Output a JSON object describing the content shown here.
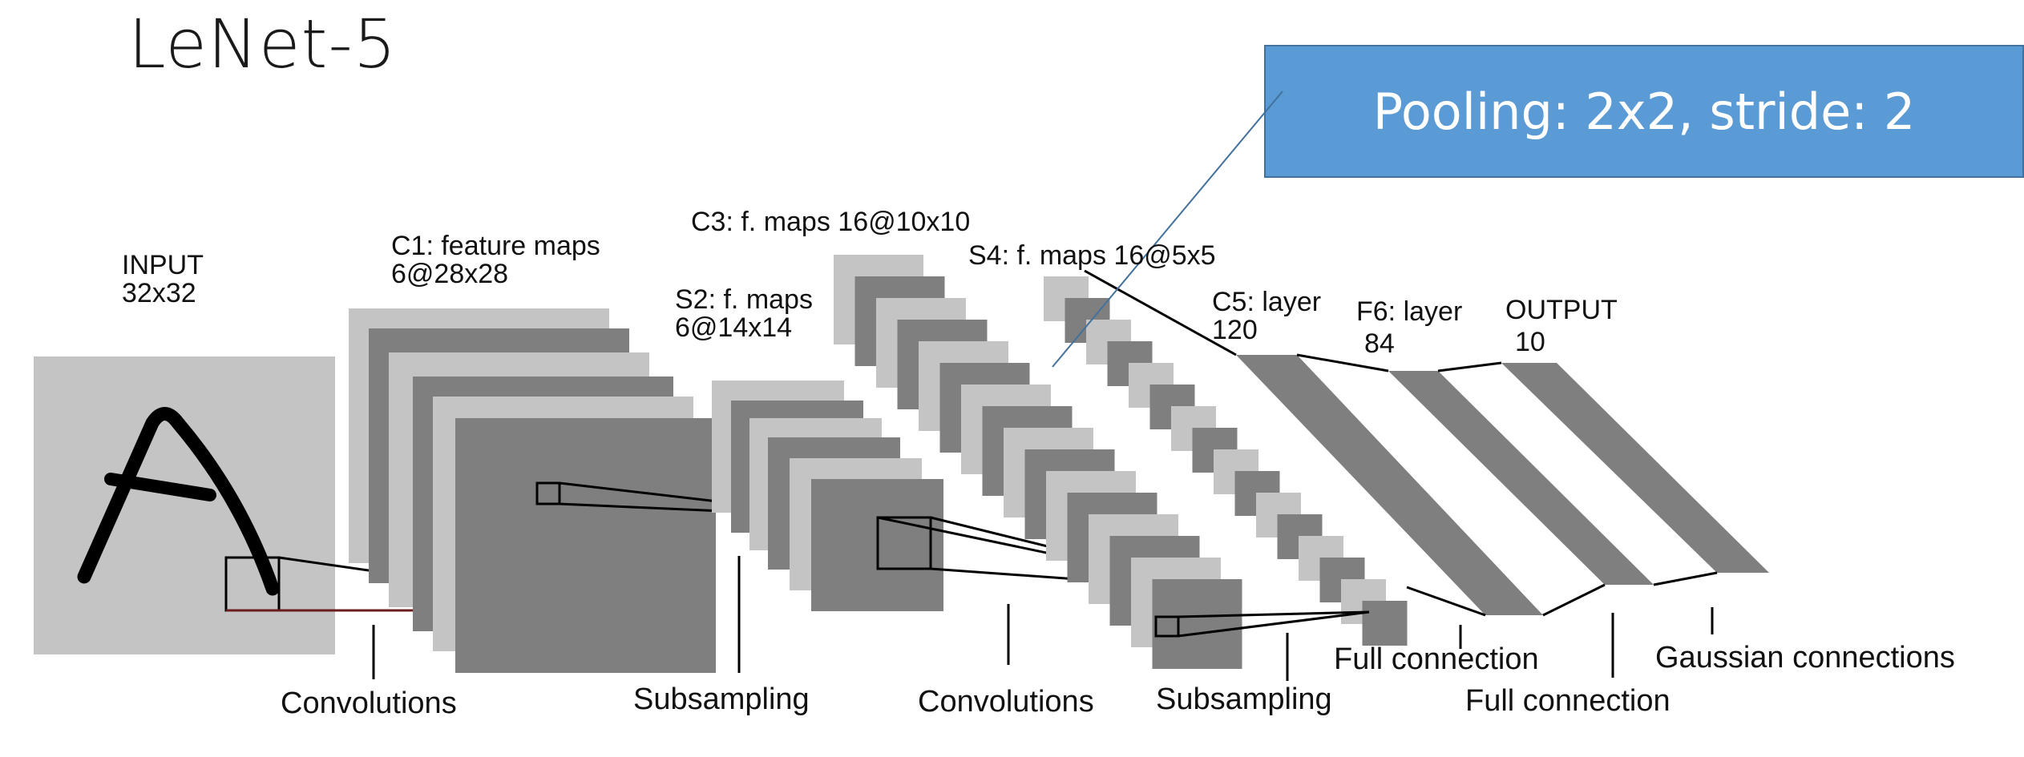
{
  "slide": {
    "title": "LeNet-5"
  },
  "callout": {
    "text": "Pooling: 2x2, stride: 2"
  },
  "layers": {
    "input": {
      "name": "INPUT",
      "size": "32x32"
    },
    "c1": {
      "name": "C1: feature maps",
      "size": "6@28x28"
    },
    "s2": {
      "name": "S2: f. maps",
      "size": "6@14x14"
    },
    "c3": {
      "name": "C3: f. maps 16@10x10"
    },
    "s4": {
      "name": "S4: f. maps 16@5x5"
    },
    "c5": {
      "name": "C5: layer",
      "size": "120"
    },
    "f6": {
      "name": "F6: layer",
      "size": "84"
    },
    "output": {
      "name": "OUTPUT",
      "size": "10"
    }
  },
  "operations": {
    "convolutions_1": "Convolutions",
    "subsampling_1": "Subsampling",
    "convolutions_2": "Convolutions",
    "subsampling_2": "Subsampling",
    "full_connection_1": "Full connection",
    "full_connection_2": "Full connection",
    "gaussian": "Gaussian connections"
  },
  "colors": {
    "light_map": "#c4c4c4",
    "dark_map": "#7f7f7f",
    "callout_fill": "#5b9bd5",
    "callout_text": "#ffffff"
  }
}
